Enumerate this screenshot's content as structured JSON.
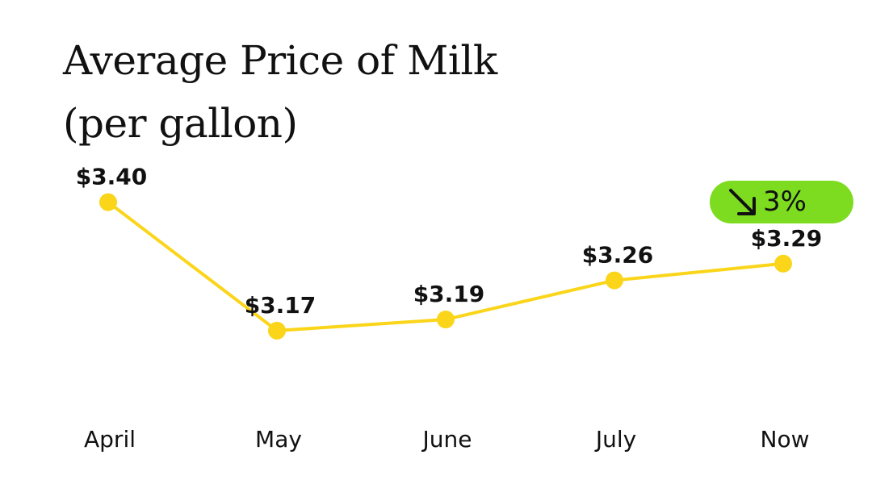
{
  "chart_data": {
    "type": "line",
    "title": "Average Price of Milk",
    "subtitle": "(per gallon)",
    "categories": [
      "April",
      "May",
      "June",
      "July",
      "Now"
    ],
    "series": [
      {
        "values": [
          3.4,
          3.17,
          3.19,
          3.26,
          3.29
        ],
        "labels": [
          "$3.40",
          "$3.17",
          "$3.19",
          "$3.26",
          "$3.29"
        ],
        "color": "#fad51a"
      }
    ],
    "ylim": [
      3.05,
      3.45
    ],
    "grid": false,
    "annotations": [
      {
        "text": "3%",
        "direction": "down",
        "color": "#7ddc1f"
      }
    ]
  }
}
